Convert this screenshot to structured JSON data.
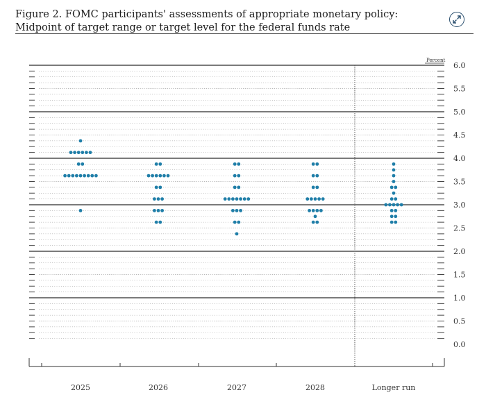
{
  "figure": {
    "title": "Figure 2. FOMC participants' assessments of appropriate monetary policy: Midpoint of target range or target level for the federal funds rate"
  },
  "controls": {
    "expand_icon": "expand-arrows-icon"
  },
  "colors": {
    "dot": "#1f7ea8",
    "axis": "#333333",
    "grid_dot": "#777777"
  },
  "chart_data": {
    "type": "scatter",
    "subtype": "dot-plot",
    "ylabel": "Percent",
    "ylim": [
      0,
      6
    ],
    "yticks": [
      "6.0",
      "5.5",
      "5.0",
      "4.5",
      "4.0",
      "3.5",
      "3.0",
      "2.5",
      "2.0",
      "1.5",
      "1.0",
      "0.5",
      "0.0"
    ],
    "categories": [
      "2025",
      "2026",
      "2027",
      "2028",
      "Longer run"
    ],
    "grid": true,
    "dots": [
      {
        "category": "2025",
        "y": 4.375,
        "count": 1
      },
      {
        "category": "2025",
        "y": 4.125,
        "count": 6
      },
      {
        "category": "2025",
        "y": 3.875,
        "count": 2
      },
      {
        "category": "2025",
        "y": 3.625,
        "count": 9
      },
      {
        "category": "2025",
        "y": 2.875,
        "count": 1
      },
      {
        "category": "2026",
        "y": 3.875,
        "count": 2
      },
      {
        "category": "2026",
        "y": 3.625,
        "count": 6
      },
      {
        "category": "2026",
        "y": 3.375,
        "count": 2
      },
      {
        "category": "2026",
        "y": 3.125,
        "count": 3
      },
      {
        "category": "2026",
        "y": 2.875,
        "count": 3
      },
      {
        "category": "2026",
        "y": 2.625,
        "count": 2
      },
      {
        "category": "2027",
        "y": 3.875,
        "count": 2
      },
      {
        "category": "2027",
        "y": 3.625,
        "count": 2
      },
      {
        "category": "2027",
        "y": 3.375,
        "count": 2
      },
      {
        "category": "2027",
        "y": 3.125,
        "count": 7
      },
      {
        "category": "2027",
        "y": 2.875,
        "count": 3
      },
      {
        "category": "2027",
        "y": 2.625,
        "count": 2
      },
      {
        "category": "2027",
        "y": 2.375,
        "count": 1
      },
      {
        "category": "2028",
        "y": 3.875,
        "count": 2
      },
      {
        "category": "2028",
        "y": 3.625,
        "count": 2
      },
      {
        "category": "2028",
        "y": 3.375,
        "count": 2
      },
      {
        "category": "2028",
        "y": 3.125,
        "count": 5
      },
      {
        "category": "2028",
        "y": 2.875,
        "count": 4
      },
      {
        "category": "2028",
        "y": 2.75,
        "count": 1
      },
      {
        "category": "2028",
        "y": 2.625,
        "count": 2
      },
      {
        "category": "Longer run",
        "y": 3.875,
        "count": 1
      },
      {
        "category": "Longer run",
        "y": 3.75,
        "count": 1
      },
      {
        "category": "Longer run",
        "y": 3.625,
        "count": 1
      },
      {
        "category": "Longer run",
        "y": 3.5,
        "count": 1
      },
      {
        "category": "Longer run",
        "y": 3.375,
        "count": 2
      },
      {
        "category": "Longer run",
        "y": 3.25,
        "count": 1
      },
      {
        "category": "Longer run",
        "y": 3.125,
        "count": 2
      },
      {
        "category": "Longer run",
        "y": 3.0,
        "count": 5
      },
      {
        "category": "Longer run",
        "y": 2.875,
        "count": 2
      },
      {
        "category": "Longer run",
        "y": 2.75,
        "count": 2
      },
      {
        "category": "Longer run",
        "y": 2.625,
        "count": 2
      }
    ]
  }
}
